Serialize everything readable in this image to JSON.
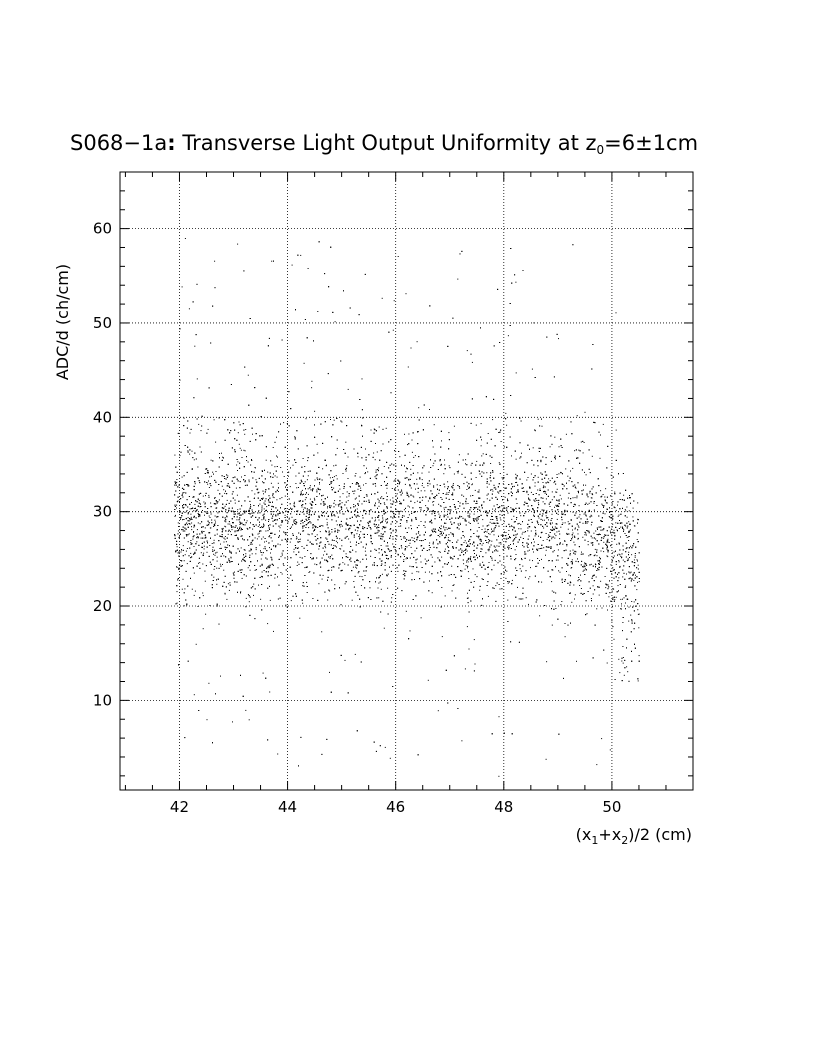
{
  "chart_data": {
    "type": "scatter",
    "title": "S068−1a: Transverse Light Output Uniformity at z₀=6±1cm",
    "title_parts": {
      "main": "S068−1a",
      "colon": ":",
      "rest": " Transverse Light Output Uniformity at z",
      "sub0": "0",
      "eq": "=6±1cm"
    },
    "xlabel": "(x₁+x₂)/2 (cm)",
    "xlabel_parts": {
      "a": "(x",
      "s1": "1",
      "b": "+x",
      "s2": "2",
      "c": ")/2 (cm)"
    },
    "ylabel": "ADC/d (ch/cm)",
    "xlim": [
      40.9,
      51.5
    ],
    "ylim": [
      0.5,
      66
    ],
    "x_ticks": [
      42,
      44,
      46,
      48,
      50
    ],
    "x_tick_labels": [
      "42",
      "44",
      "46",
      "48",
      "50"
    ],
    "y_ticks": [
      10,
      20,
      30,
      40,
      50,
      60
    ],
    "y_tick_labels": [
      "10",
      "20",
      "30",
      "40",
      "50",
      "60"
    ],
    "grid": true,
    "grid_style": "dotted",
    "marker_color": "#000000",
    "distribution": {
      "x_range": [
        41.9,
        50.5
      ],
      "core_mean_y": 29,
      "core_spread_y": 3.5,
      "count": 9000,
      "sample_points": [
        {
          "x": 42.0,
          "y": 44
        },
        {
          "x": 42.0,
          "y": 36
        },
        {
          "x": 42.1,
          "y": 59
        },
        {
          "x": 42.3,
          "y": 16
        },
        {
          "x": 42.5,
          "y": 8
        },
        {
          "x": 43.0,
          "y": 30
        },
        {
          "x": 43.5,
          "y": 28
        },
        {
          "x": 44.0,
          "y": 29
        },
        {
          "x": 44.5,
          "y": 30
        },
        {
          "x": 45.0,
          "y": 31
        },
        {
          "x": 45.5,
          "y": 29
        },
        {
          "x": 46.0,
          "y": 28
        },
        {
          "x": 46.5,
          "y": 27
        },
        {
          "x": 47.0,
          "y": 30
        },
        {
          "x": 47.5,
          "y": 28
        },
        {
          "x": 48.0,
          "y": 29
        },
        {
          "x": 48.5,
          "y": 28
        },
        {
          "x": 49.0,
          "y": 26
        },
        {
          "x": 49.5,
          "y": 24
        },
        {
          "x": 50.0,
          "y": 20
        },
        {
          "x": 50.2,
          "y": 14
        },
        {
          "x": 50.3,
          "y": 27
        },
        {
          "x": 49.8,
          "y": 6
        },
        {
          "x": 47.9,
          "y": 2
        }
      ]
    }
  }
}
